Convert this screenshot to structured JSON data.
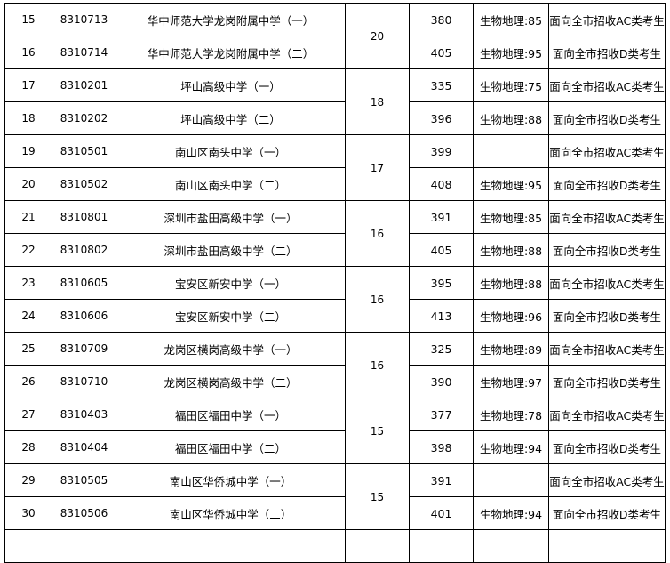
{
  "rows": [
    {
      "no": "15",
      "code": "8310713",
      "name": "华中师范大学龙岗附属中学（一）",
      "count": "20",
      "score": "380",
      "subject": "生物地理:85",
      "note": "面向全市招收AC类考生"
    },
    {
      "no": "16",
      "code": "8310714",
      "name": "华中师范大学龙岗附属中学（二）",
      "score": "405",
      "subject": "生物地理:95",
      "note": "面向全市招收D类考生"
    },
    {
      "no": "17",
      "code": "8310201",
      "name": "坪山高级中学（一）",
      "count": "18",
      "score": "335",
      "subject": "生物地理:75",
      "note": "面向全市招收AC类考生"
    },
    {
      "no": "18",
      "code": "8310202",
      "name": "坪山高级中学（二）",
      "score": "396",
      "subject": "生物地理:88",
      "note": "面向全市招收D类考生"
    },
    {
      "no": "19",
      "code": "8310501",
      "name": "南山区南头中学（一）",
      "count": "17",
      "score": "399",
      "subject": "",
      "note": "面向全市招收AC类考生"
    },
    {
      "no": "20",
      "code": "8310502",
      "name": "南山区南头中学（二）",
      "score": "408",
      "subject": "生物地理:95",
      "note": "面向全市招收D类考生"
    },
    {
      "no": "21",
      "code": "8310801",
      "name": "深圳市盐田高级中学（一）",
      "count": "16",
      "score": "391",
      "subject": "生物地理:85",
      "note": "面向全市招收AC类考生"
    },
    {
      "no": "22",
      "code": "8310802",
      "name": "深圳市盐田高级中学（二）",
      "score": "405",
      "subject": "生物地理:88",
      "note": "面向全市招收D类考生"
    },
    {
      "no": "23",
      "code": "8310605",
      "name": "宝安区新安中学（一）",
      "count": "16",
      "score": "395",
      "subject": "生物地理:88",
      "note": "面向全市招收AC类考生"
    },
    {
      "no": "24",
      "code": "8310606",
      "name": "宝安区新安中学（二）",
      "score": "413",
      "subject": "生物地理:96",
      "note": "面向全市招收D类考生"
    },
    {
      "no": "25",
      "code": "8310709",
      "name": "龙岗区横岗高级中学（一）",
      "count": "16",
      "score": "325",
      "subject": "生物地理:89",
      "note": "面向全市招收AC类考生"
    },
    {
      "no": "26",
      "code": "8310710",
      "name": "龙岗区横岗高级中学（二）",
      "score": "390",
      "subject": "生物地理:97",
      "note": "面向全市招收D类考生"
    },
    {
      "no": "27",
      "code": "8310403",
      "name": "福田区福田中学（一）",
      "count": "15",
      "score": "377",
      "subject": "生物地理:78",
      "note": "面向全市招收AC类考生"
    },
    {
      "no": "28",
      "code": "8310404",
      "name": "福田区福田中学（二）",
      "score": "398",
      "subject": "生物地理:94",
      "note": "面向全市招收D类考生"
    },
    {
      "no": "29",
      "code": "8310505",
      "name": "南山区华侨城中学（一）",
      "count": "15",
      "score": "391",
      "subject": "",
      "note": "面向全市招收AC类考生"
    },
    {
      "no": "30",
      "code": "8310506",
      "name": "南山区华侨城中学（二）",
      "score": "401",
      "subject": "生物地理:94",
      "note": "面向全市招收D类考生"
    }
  ]
}
